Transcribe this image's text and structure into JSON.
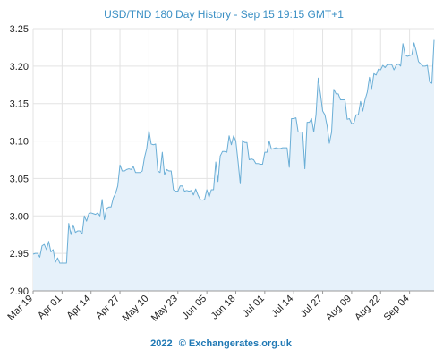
{
  "chart_data": {
    "type": "area",
    "title": "USD/TND 180 Day History - Sep 15 19:15 GMT+1",
    "xlabel": "",
    "ylabel": "",
    "ylim": [
      2.9,
      3.25
    ],
    "yticks": [
      "3.25",
      "3.20",
      "3.15",
      "3.10",
      "3.05",
      "3.00",
      "2.95",
      "2.90"
    ],
    "xticks": [
      "Mar 19",
      "Apr 01",
      "Apr 14",
      "Apr 27",
      "May 10",
      "May 23",
      "Jun 05",
      "Jun 18",
      "Jul 01",
      "Jul 14",
      "Jul 27",
      "Aug 09",
      "Aug 22",
      "Sep 04"
    ],
    "grid": true,
    "legend": "none",
    "line_color": "#6aaed6",
    "fill_color": "#e6f1fa",
    "series": [
      {
        "x": [
          "Mar 19",
          "Mar 20",
          "Mar 21",
          "Mar 22",
          "Mar 23",
          "Mar 24",
          "Mar 25",
          "Mar 26",
          "Mar 27",
          "Mar 28",
          "Mar 29",
          "Mar 30",
          "Mar 31",
          "Apr 01",
          "Apr 02",
          "Apr 03",
          "Apr 04",
          "Apr 05",
          "Apr 06",
          "Apr 07",
          "Apr 08",
          "Apr 09",
          "Apr 10",
          "Apr 11",
          "Apr 12",
          "Apr 13",
          "Apr 14",
          "Apr 15",
          "Apr 16",
          "Apr 17",
          "Apr 18",
          "Apr 19",
          "Apr 20",
          "Apr 21",
          "Apr 22",
          "Apr 23",
          "Apr 24",
          "Apr 25",
          "Apr 26",
          "Apr 27",
          "Apr 28",
          "Apr 29",
          "Apr 30",
          "May 01",
          "May 02",
          "May 03",
          "May 04",
          "May 05",
          "May 06",
          "May 07",
          "May 08",
          "May 09",
          "May 10",
          "May 11",
          "May 12",
          "May 13",
          "May 14",
          "May 15",
          "May 16",
          "May 17",
          "May 18",
          "May 19",
          "May 20",
          "May 21",
          "May 22",
          "May 23",
          "May 24",
          "May 25",
          "May 26",
          "May 27",
          "May 28",
          "May 29",
          "May 30",
          "May 31",
          "Jun 01",
          "Jun 02",
          "Jun 03",
          "Jun 04",
          "Jun 05",
          "Jun 06",
          "Jun 07",
          "Jun 08",
          "Jun 09",
          "Jun 10",
          "Jun 11",
          "Jun 12",
          "Jun 13",
          "Jun 14",
          "Jun 15",
          "Jun 16",
          "Jun 17",
          "Jun 18",
          "Jun 19",
          "Jun 20",
          "Jun 21",
          "Jun 22",
          "Jun 23",
          "Jun 24",
          "Jun 25",
          "Jun 26",
          "Jun 27",
          "Jun 28",
          "Jun 29",
          "Jun 30",
          "Jul 01",
          "Jul 02",
          "Jul 03",
          "Jul 04",
          "Jul 05",
          "Jul 06",
          "Jul 07",
          "Jul 08",
          "Jul 09",
          "Jul 10",
          "Jul 11",
          "Jul 12",
          "Jul 13",
          "Jul 14",
          "Jul 15",
          "Jul 16",
          "Jul 17",
          "Jul 18",
          "Jul 19",
          "Jul 20",
          "Jul 21",
          "Jul 22",
          "Jul 23",
          "Jul 24",
          "Jul 25",
          "Jul 26",
          "Jul 27",
          "Jul 28",
          "Jul 29",
          "Jul 30",
          "Jul 31",
          "Aug 01",
          "Aug 02",
          "Aug 03",
          "Aug 04",
          "Aug 05",
          "Aug 06",
          "Aug 07",
          "Aug 08",
          "Aug 09",
          "Aug 10",
          "Aug 11",
          "Aug 12",
          "Aug 13",
          "Aug 14",
          "Aug 15",
          "Aug 16",
          "Aug 17",
          "Aug 18",
          "Aug 19",
          "Aug 20",
          "Aug 21",
          "Aug 22",
          "Aug 23",
          "Aug 24",
          "Aug 25",
          "Aug 26",
          "Aug 27",
          "Aug 28",
          "Aug 29",
          "Aug 30",
          "Aug 31",
          "Sep 01",
          "Sep 02",
          "Sep 03",
          "Sep 04",
          "Sep 05",
          "Sep 06",
          "Sep 07",
          "Sep 08",
          "Sep 09",
          "Sep 10",
          "Sep 11",
          "Sep 12",
          "Sep 13",
          "Sep 14",
          "Sep 15"
        ],
        "values": [
          2.949,
          2.95,
          2.95,
          2.945,
          2.96,
          2.962,
          2.955,
          2.966,
          2.952,
          2.955,
          2.938,
          2.944,
          2.937,
          2.937,
          2.937,
          2.937,
          2.99,
          2.975,
          2.988,
          2.978,
          2.98,
          2.98,
          2.976,
          3.0,
          2.993,
          3.003,
          3.004,
          3.003,
          3.002,
          3.004,
          3.0,
          3.022,
          2.995,
          3.01,
          3.012,
          3.012,
          3.024,
          3.03,
          3.04,
          3.068,
          3.06,
          3.06,
          3.062,
          3.063,
          3.062,
          3.066,
          3.058,
          3.058,
          3.058,
          3.06,
          3.078,
          3.09,
          3.114,
          3.096,
          3.095,
          3.096,
          3.06,
          3.058,
          3.085,
          3.055,
          3.062,
          3.06,
          3.06,
          3.035,
          3.033,
          3.033,
          3.04,
          3.04,
          3.033,
          3.034,
          3.033,
          3.034,
          3.028,
          3.036,
          3.028,
          3.022,
          3.021,
          3.022,
          3.035,
          3.025,
          3.035,
          3.035,
          3.072,
          3.046,
          3.08,
          3.086,
          3.086,
          3.085,
          3.107,
          3.095,
          3.107,
          3.1,
          3.073,
          3.043,
          3.101,
          3.098,
          3.098,
          3.075,
          3.076,
          3.075,
          3.07,
          3.07,
          3.069,
          3.069,
          3.085,
          3.085,
          3.1,
          3.089,
          3.09,
          3.091,
          3.09,
          3.09,
          3.091,
          3.091,
          3.091,
          3.065,
          3.13,
          3.13,
          3.131,
          3.112,
          3.112,
          3.112,
          3.063,
          3.125,
          3.125,
          3.13,
          3.112,
          3.135,
          3.184,
          3.163,
          3.14,
          3.135,
          3.12,
          3.097,
          3.112,
          3.169,
          3.163,
          3.163,
          3.155,
          3.155,
          3.155,
          3.129,
          3.13,
          3.123,
          3.124,
          3.135,
          3.135,
          3.153,
          3.14,
          3.155,
          3.165,
          3.185,
          3.17,
          3.19,
          3.188,
          3.196,
          3.195,
          3.201,
          3.198,
          3.202,
          3.202,
          3.202,
          3.195,
          3.201,
          3.203,
          3.2,
          3.23,
          3.215,
          3.213,
          3.214,
          3.215,
          3.231,
          3.22,
          3.206,
          3.203,
          3.2,
          3.2,
          3.201,
          3.179,
          3.177,
          3.235
        ]
      }
    ]
  },
  "footer": {
    "year": "2022",
    "copyright_text": "© Exchangerates.org.uk"
  }
}
